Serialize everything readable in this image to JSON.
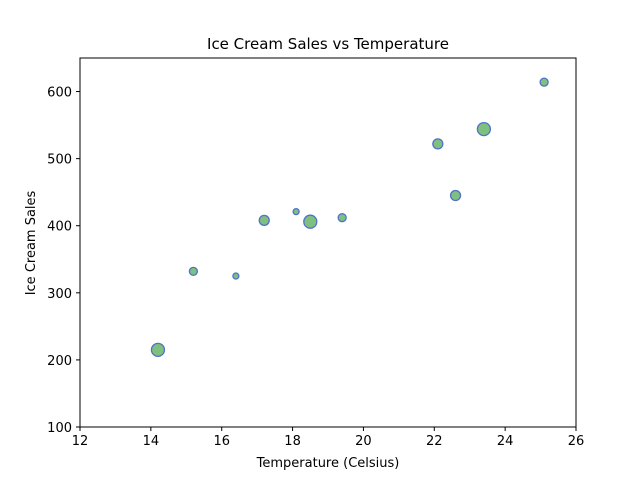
{
  "chart_data": {
    "type": "scatter",
    "title": "Ice Cream Sales vs Temperature",
    "xlabel": "Temperature (Celsius)",
    "ylabel": "Ice Cream Sales",
    "xlim": [
      12,
      26
    ],
    "ylim": [
      100,
      650
    ],
    "xticks": [
      12,
      14,
      16,
      18,
      20,
      22,
      24,
      26
    ],
    "yticks": [
      100,
      200,
      300,
      400,
      500,
      600
    ],
    "grid": false,
    "marker_fill": "#7fbf7f",
    "marker_edge": "#4f73c8",
    "points": [
      {
        "x": 14.2,
        "y": 215,
        "size": "large"
      },
      {
        "x": 15.2,
        "y": 332,
        "size": "small"
      },
      {
        "x": 16.4,
        "y": 325,
        "size": "tiny"
      },
      {
        "x": 17.2,
        "y": 408,
        "size": "medium"
      },
      {
        "x": 18.1,
        "y": 421,
        "size": "tiny"
      },
      {
        "x": 18.5,
        "y": 406,
        "size": "large"
      },
      {
        "x": 19.4,
        "y": 412,
        "size": "small"
      },
      {
        "x": 22.1,
        "y": 522,
        "size": "medium"
      },
      {
        "x": 22.6,
        "y": 445,
        "size": "medium"
      },
      {
        "x": 23.4,
        "y": 544,
        "size": "large"
      },
      {
        "x": 25.1,
        "y": 614,
        "size": "small"
      }
    ]
  }
}
